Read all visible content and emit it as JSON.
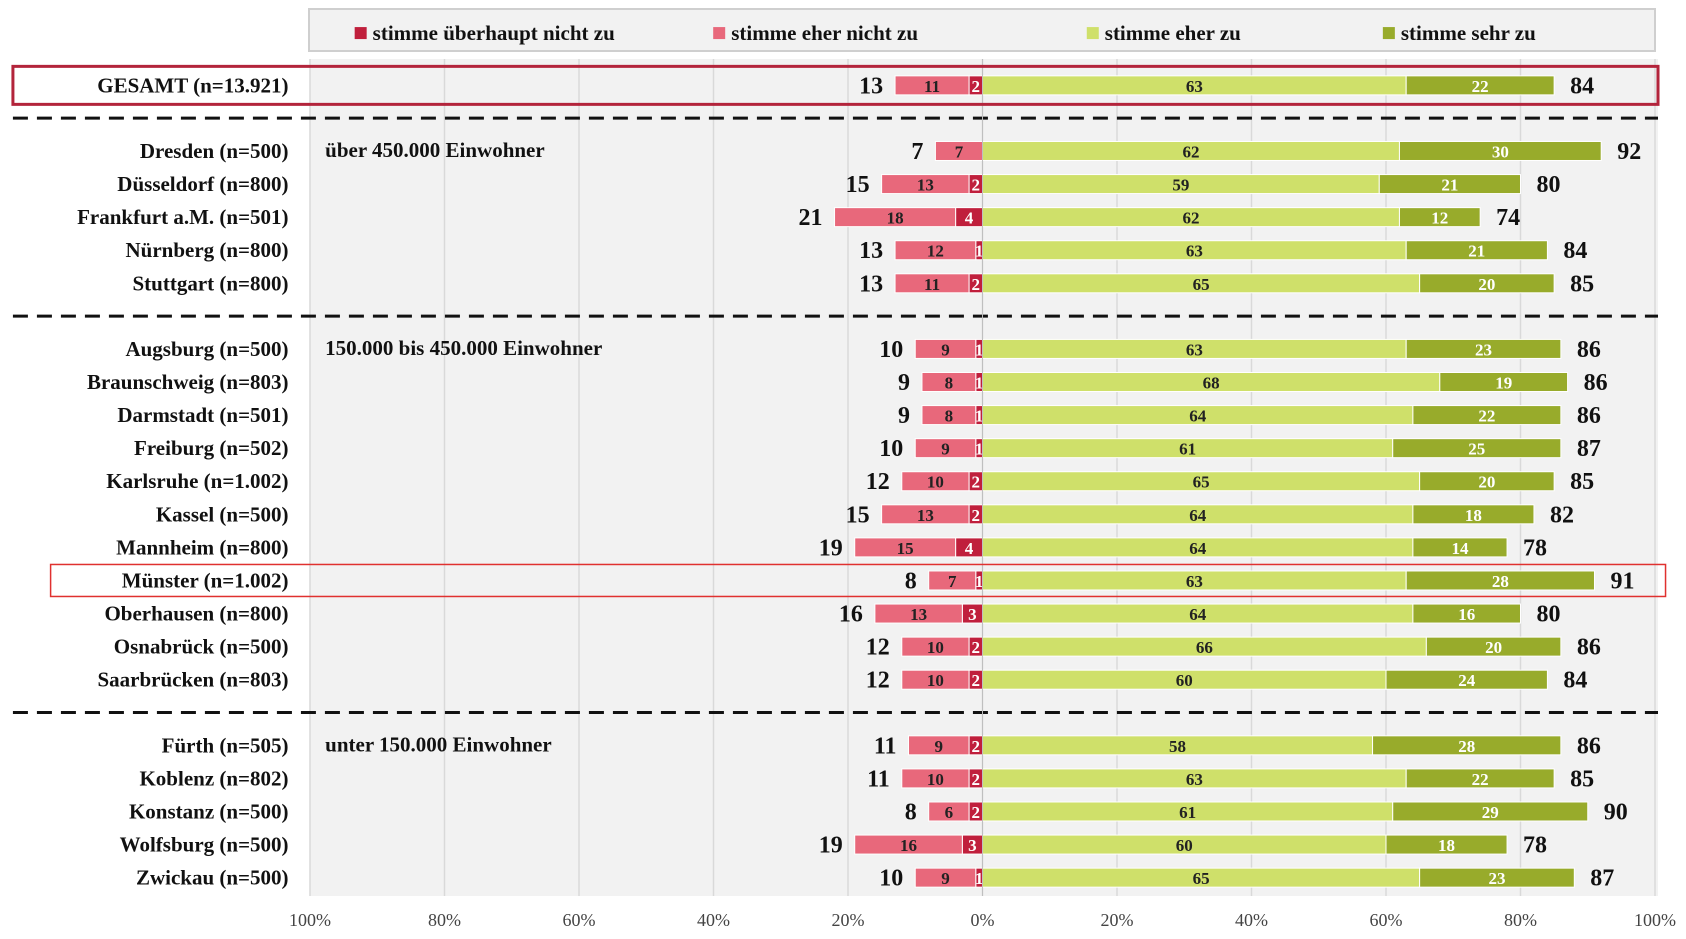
{
  "chart_data": {
    "type": "diverging-bar",
    "categories": [
      "GESAMT (n=13.921)",
      "Dresden (n=500)",
      "Düsseldorf (n=800)",
      "Frankfurt a.M. (n=501)",
      "Nürnberg (n=800)",
      "Stuttgart (n=800)",
      "Augsburg (n=500)",
      "Braunschweig (n=803)",
      "Darmstadt (n=501)",
      "Freiburg (n=502)",
      "Karlsruhe (n=1.002)",
      "Kassel (n=500)",
      "Mannheim (n=800)",
      "Münster (n=1.002)",
      "Oberhausen (n=800)",
      "Osnabrück (n=500)",
      "Saarbrücken (n=803)",
      "Fürth (n=505)",
      "Koblenz (n=802)",
      "Konstanz (n=500)",
      "Wolfsburg (n=500)",
      "Zwickau (n=500)"
    ],
    "series": [
      {
        "name": "stimme überhaupt nicht zu",
        "color": "#c01f3c",
        "side": "left",
        "values": [
          2,
          null,
          2,
          4,
          1,
          2,
          1,
          1,
          1,
          1,
          2,
          2,
          4,
          1,
          3,
          2,
          2,
          2,
          2,
          2,
          3,
          1
        ]
      },
      {
        "name": "stimme eher nicht zu",
        "color": "#e8687b",
        "side": "left",
        "values": [
          11,
          7,
          13,
          18,
          12,
          11,
          9,
          8,
          8,
          9,
          10,
          13,
          15,
          7,
          13,
          10,
          10,
          9,
          10,
          6,
          16,
          9
        ]
      },
      {
        "name": "stimme eher zu",
        "color": "#cfe06a",
        "side": "right",
        "values": [
          63,
          62,
          59,
          62,
          63,
          65,
          63,
          68,
          64,
          61,
          65,
          64,
          64,
          63,
          64,
          66,
          60,
          58,
          63,
          61,
          60,
          65
        ]
      },
      {
        "name": "stimme sehr zu",
        "color": "#98ab2b",
        "side": "right",
        "values": [
          22,
          30,
          21,
          12,
          21,
          20,
          23,
          19,
          22,
          25,
          20,
          18,
          14,
          28,
          16,
          20,
          24,
          28,
          22,
          29,
          18,
          23
        ]
      }
    ],
    "disagree_totals": [
      13,
      7,
      15,
      21,
      13,
      13,
      10,
      9,
      9,
      10,
      12,
      15,
      19,
      8,
      16,
      12,
      12,
      11,
      11,
      8,
      19,
      10
    ],
    "agree_totals": [
      84,
      92,
      80,
      74,
      84,
      85,
      86,
      86,
      86,
      87,
      85,
      82,
      78,
      91,
      80,
      86,
      84,
      86,
      85,
      90,
      78,
      87
    ],
    "groups": [
      {
        "label": "über 450.000 Einwohner",
        "start": 1
      },
      {
        "label": "150.000 bis 450.000 Einwohner",
        "start": 6
      },
      {
        "label": "unter 150.000 Einwohner",
        "start": 17
      }
    ],
    "highlighted": [
      0,
      13
    ],
    "xlim": [
      -100,
      100
    ],
    "xticks": [
      {
        "value": -100,
        "label": "100%"
      },
      {
        "value": -80,
        "label": "80%"
      },
      {
        "value": -60,
        "label": "60%"
      },
      {
        "value": -40,
        "label": "40%"
      },
      {
        "value": -20,
        "label": "20%"
      },
      {
        "value": 0,
        "label": "0%"
      },
      {
        "value": 20,
        "label": "20%"
      },
      {
        "value": 40,
        "label": "40%"
      },
      {
        "value": 60,
        "label": "60%"
      },
      {
        "value": 80,
        "label": "80%"
      },
      {
        "value": 100,
        "label": "100%"
      }
    ],
    "grid": true,
    "legend": "top"
  }
}
